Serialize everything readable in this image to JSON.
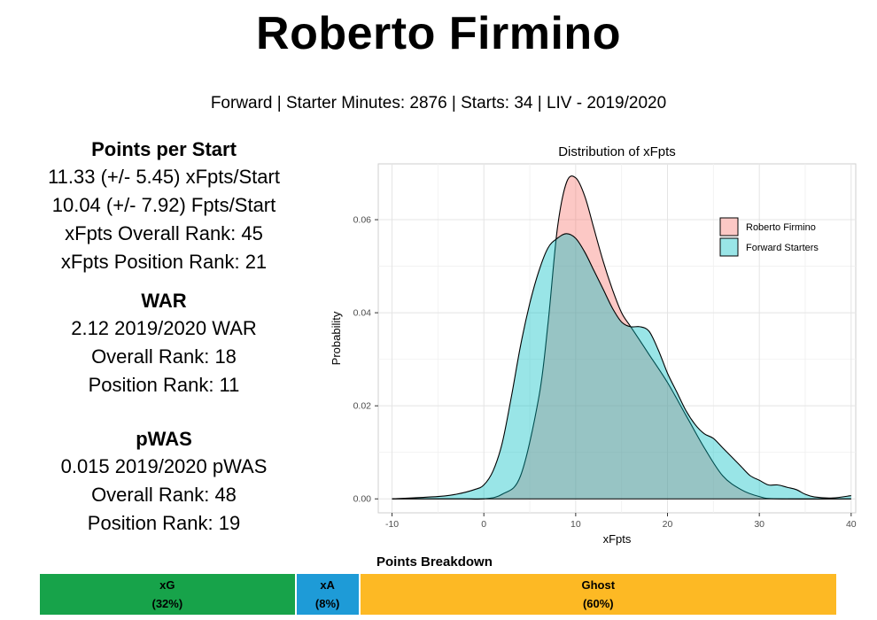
{
  "header": {
    "title": "Roberto Firmino",
    "subtitle": "Forward | Starter Minutes: 2876 | Starts: 34 | LIV - 2019/2020"
  },
  "points_per_start": {
    "heading": "Points per Start",
    "lines": [
      "11.33 (+/- 5.45) xFpts/Start",
      "10.04 (+/- 7.92) Fpts/Start",
      "xFpts Overall Rank: 45",
      "xFpts Position Rank: 21"
    ]
  },
  "war": {
    "heading": "WAR",
    "lines": [
      "2.12 2019/2020 WAR",
      "Overall Rank: 18",
      "Position Rank: 11"
    ]
  },
  "pwas": {
    "heading": "pWAS",
    "lines": [
      "0.015 2019/2020 pWAS",
      "Overall Rank: 48",
      "Position Rank: 19"
    ]
  },
  "chart_data": [
    {
      "type": "area",
      "title": "Distribution of xFpts",
      "xlabel": "xFpts",
      "ylabel": "Probability",
      "xlim": [
        -11.5,
        40.5
      ],
      "ylim": [
        -0.003,
        0.072
      ],
      "x_ticks": [
        -10,
        0,
        10,
        20,
        30,
        40
      ],
      "x_tick_labels": [
        "-10",
        "0",
        "10",
        "20",
        "30",
        "40"
      ],
      "y_ticks": [
        0,
        0.02,
        0.04,
        0.06
      ],
      "y_tick_labels": [
        "0.00",
        "0.02",
        "0.04",
        "0.06"
      ],
      "grid": true,
      "legend_position": "top-right",
      "series": [
        {
          "name": "Roberto Firmino",
          "color": "#F8766D",
          "x": [
            -10,
            -4,
            -2,
            0,
            2,
            4,
            6,
            7,
            8,
            9,
            10,
            11,
            12,
            13,
            14,
            15,
            16,
            17,
            18,
            20,
            22,
            24,
            26,
            28,
            30,
            32,
            40
          ],
          "y": [
            0,
            0,
            0,
            0,
            0.001,
            0.005,
            0.022,
            0.038,
            0.058,
            0.068,
            0.069,
            0.065,
            0.058,
            0.051,
            0.045,
            0.04,
            0.037,
            0.034,
            0.031,
            0.025,
            0.018,
            0.011,
            0.005,
            0.002,
            0.0005,
            0,
            0
          ]
        },
        {
          "name": "Forward Starters",
          "color": "#00BFC4",
          "x": [
            -10,
            -5,
            -3,
            -1,
            0,
            1,
            2,
            3,
            4,
            5,
            6,
            7,
            8,
            9,
            10,
            11,
            12,
            13,
            14,
            15,
            16,
            17,
            18,
            19,
            20,
            21,
            22,
            23,
            24,
            25,
            26,
            27,
            28,
            29,
            30,
            31,
            32,
            33,
            34,
            35,
            36,
            38,
            40
          ],
          "y": [
            0,
            0.0005,
            0.001,
            0.002,
            0.003,
            0.006,
            0.012,
            0.022,
            0.033,
            0.042,
            0.049,
            0.054,
            0.056,
            0.057,
            0.056,
            0.053,
            0.049,
            0.045,
            0.041,
            0.038,
            0.037,
            0.037,
            0.036,
            0.032,
            0.027,
            0.023,
            0.019,
            0.016,
            0.014,
            0.013,
            0.011,
            0.009,
            0.007,
            0.005,
            0.004,
            0.003,
            0.003,
            0.0025,
            0.002,
            0.001,
            0.0004,
            0.0002,
            0.0007
          ]
        }
      ]
    },
    {
      "type": "bar",
      "title": "Points Breakdown",
      "categories": [
        "xG",
        "xA",
        "Ghost"
      ],
      "values": [
        32,
        8,
        60
      ],
      "labels": [
        "(32%)",
        "(8%)",
        "(60%)"
      ],
      "colors": [
        "#17A34A",
        "#1E9BD7",
        "#FDB924"
      ]
    }
  ]
}
